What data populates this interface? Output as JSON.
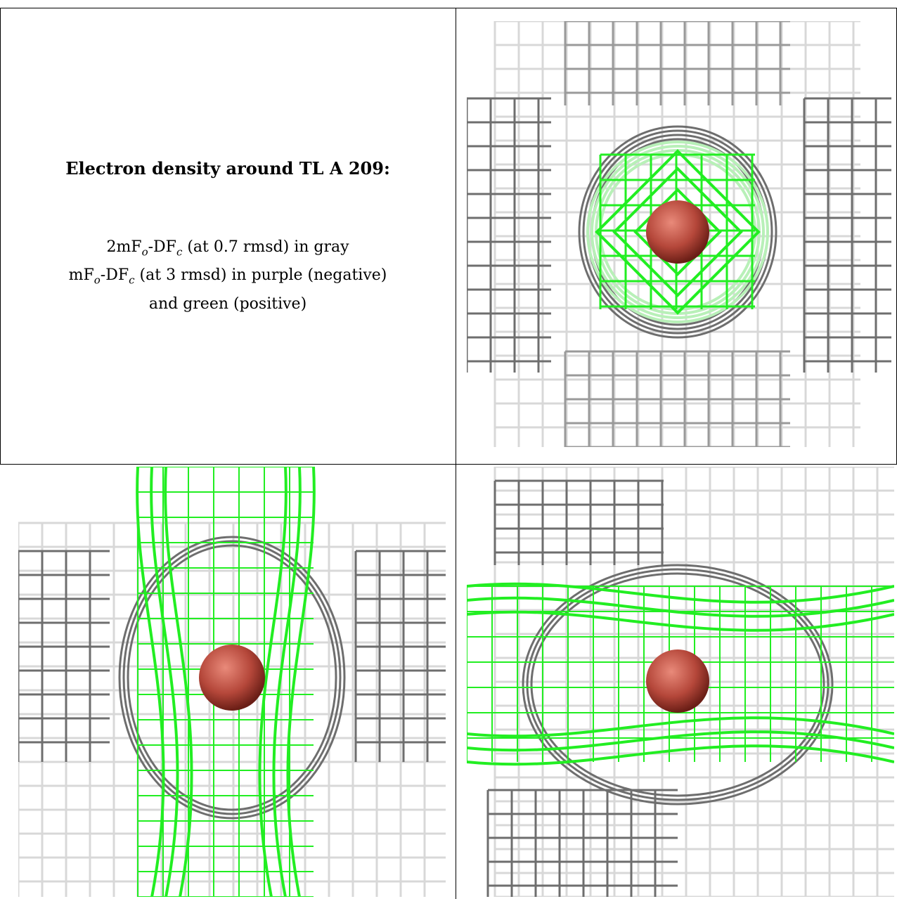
{
  "title": "Electron density around TL A 209:",
  "legend": {
    "line1": {
      "pre": "2mF",
      "s1": "o",
      "mid": "-DF",
      "s2": "c",
      "post": " (at 0.7 rmsd) in gray"
    },
    "line2": {
      "pre": "mF",
      "s1": "o",
      "mid": "-DF",
      "s2": "c",
      "post": " (at 3 rmsd) in purple (negative)"
    },
    "line3": "and green (positive)"
  },
  "colors": {
    "gray_dark": "#6e6e6e",
    "gray_mid": "#9a9a9a",
    "gray_light": "#d8d8d8",
    "green": "#22ee22",
    "green_light": "#b8f0b8",
    "atom": "#b5473a"
  },
  "panels": [
    {
      "view": "top",
      "mesh": "gray",
      "difference": "green",
      "atom": "TL"
    },
    {
      "view": "side-vertical",
      "mesh": "gray",
      "difference": "green",
      "atom": "TL"
    },
    {
      "view": "side-horizontal",
      "mesh": "gray",
      "difference": "green",
      "atom": "TL"
    }
  ]
}
